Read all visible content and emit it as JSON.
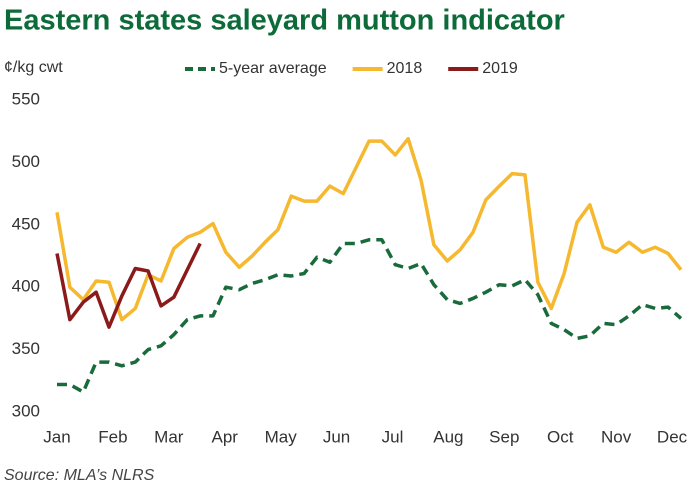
{
  "chart_data": {
    "type": "line",
    "title": "Eastern states saleyard mutton indicator",
    "y_label": "¢/kg cwt",
    "source": "Source: MLA’s NLRS",
    "x": [
      0,
      0.23,
      0.47,
      0.7,
      0.93,
      1.16,
      1.4,
      1.63,
      1.86,
      2.09,
      2.33,
      2.56,
      2.79,
      3.02,
      3.26,
      3.49,
      3.72,
      3.95,
      4.19,
      4.42,
      4.65,
      4.88,
      5.12,
      5.35,
      5.58,
      5.81,
      6.05,
      6.28,
      6.51,
      6.74,
      6.98,
      7.21,
      7.44,
      7.67,
      7.91,
      8.14,
      8.37,
      8.6,
      8.84,
      9.07,
      9.3,
      9.53,
      9.77,
      10,
      10.23,
      10.47,
      10.7,
      10.93,
      11.16
    ],
    "series": [
      {
        "name": "5-year average",
        "color": "#1a6b3c",
        "dash": true,
        "values": [
          322,
          322,
          316,
          340,
          340,
          337,
          340,
          350,
          353,
          362,
          374,
          377,
          377,
          400,
          398,
          403,
          406,
          410,
          409,
          411,
          424,
          420,
          435,
          435,
          438,
          438,
          418,
          415,
          419,
          402,
          390,
          387,
          391,
          396,
          402,
          401,
          406,
          394,
          371,
          366,
          359,
          361,
          371,
          370,
          377,
          386,
          383,
          384,
          375
        ]
      },
      {
        "name": "2018",
        "color": "#f5b82e",
        "dash": false,
        "values": [
          460,
          400,
          390,
          405,
          404,
          374,
          383,
          410,
          405,
          431,
          440,
          444,
          451,
          428,
          416,
          425,
          436,
          446,
          473,
          469,
          469,
          481,
          475,
          496,
          517,
          517,
          506,
          519,
          486,
          434,
          421,
          430,
          444,
          470,
          481,
          491,
          490,
          404,
          383,
          411,
          452,
          466,
          432,
          428,
          436,
          428,
          432,
          427,
          414
        ]
      },
      {
        "name": "2019",
        "color": "#8b1a1a",
        "dash": false,
        "values": [
          427,
          374,
          388,
          396,
          368,
          393,
          415,
          413,
          385,
          392,
          414,
          435,
          null,
          null,
          null,
          null,
          null,
          null,
          null,
          null,
          null,
          null,
          null,
          null,
          null,
          null,
          null,
          null,
          null,
          null,
          null,
          null,
          null,
          null,
          null,
          null,
          null,
          null,
          null,
          null,
          null,
          null,
          null,
          null,
          null,
          null,
          null,
          null,
          null
        ]
      }
    ],
    "xlim": [
      0,
      11.16
    ],
    "xticks": [
      {
        "value": 0,
        "label": "Jan"
      },
      {
        "value": 1,
        "label": "Feb"
      },
      {
        "value": 2,
        "label": "Mar"
      },
      {
        "value": 3,
        "label": "Apr"
      },
      {
        "value": 4,
        "label": "May"
      },
      {
        "value": 5,
        "label": "Jun"
      },
      {
        "value": 6,
        "label": "Jul"
      },
      {
        "value": 7,
        "label": "Aug"
      },
      {
        "value": 8,
        "label": "Sep"
      },
      {
        "value": 9,
        "label": "Oct"
      },
      {
        "value": 10,
        "label": "Nov"
      },
      {
        "value": 11,
        "label": "Dec"
      }
    ],
    "ylim": [
      300,
      550
    ],
    "yticks": [
      300,
      350,
      400,
      450,
      500,
      550
    ],
    "grid": false,
    "legend": "top"
  }
}
